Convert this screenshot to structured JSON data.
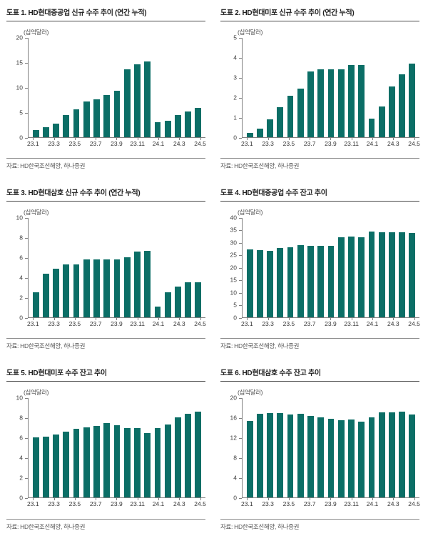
{
  "page": {
    "background": "#ffffff"
  },
  "colors": {
    "bar": "#0B6E66",
    "title_text": "#1f1f1f",
    "title_rule": "#4a4a4a",
    "axis": "#7f7f7f",
    "tick_label": "#3c3c3c",
    "source_text": "#595959",
    "source_rule": "#8c8c8c"
  },
  "chart_data": [
    {
      "type": "bar",
      "title": "도표 1. HD현대중공업 신규 수주 추이 (연간 누적)",
      "unit_label": "(십억달러)",
      "source": "자료: HD한국조선해양, 하나증권",
      "categories": [
        "23.1",
        "23.2",
        "23.3",
        "23.4",
        "23.5",
        "23.6",
        "23.7",
        "23.8",
        "23.9",
        "23.10",
        "23.11",
        "23.12",
        "24.1",
        "24.2",
        "24.3",
        "24.4",
        "24.5"
      ],
      "values": [
        1.5,
        2.0,
        2.7,
        4.5,
        5.6,
        7.2,
        7.7,
        8.5,
        9.3,
        13.6,
        14.7,
        15.3,
        3.0,
        3.3,
        4.4,
        5.2,
        5.9
      ],
      "ylim": [
        0,
        20
      ],
      "y_ticks": [
        0,
        5,
        10,
        15,
        20
      ],
      "x_tick_labels": [
        "23.1",
        "23.3",
        "23.5",
        "23.7",
        "23.9",
        "23.11",
        "24.1",
        "24.3",
        "24.5"
      ],
      "x_label_indices": [
        0,
        2,
        4,
        6,
        8,
        10,
        12,
        14,
        16
      ],
      "grid": "off",
      "legend": "none"
    },
    {
      "type": "bar",
      "title": "도표 2. HD현대미포 신규 수주 추이 (연간 누적)",
      "unit_label": "(십억달러)",
      "source": "자료: HD한국조선해양, 하나증권",
      "categories": [
        "23.1",
        "23.2",
        "23.3",
        "23.4",
        "23.5",
        "23.6",
        "23.7",
        "23.8",
        "23.9",
        "23.10",
        "23.11",
        "23.12",
        "24.1",
        "24.2",
        "24.3",
        "24.4",
        "24.5"
      ],
      "values": [
        0.2,
        0.45,
        0.9,
        1.5,
        2.1,
        2.45,
        3.3,
        3.4,
        3.4,
        3.4,
        3.62,
        3.65,
        0.95,
        1.55,
        2.55,
        3.15,
        3.7
      ],
      "ylim": [
        0,
        5
      ],
      "y_ticks": [
        0,
        1,
        2,
        3,
        4,
        5
      ],
      "x_tick_labels": [
        "23.1",
        "23.3",
        "23.5",
        "23.7",
        "23.9",
        "23.11",
        "24.1",
        "24.3",
        "24.5"
      ],
      "x_label_indices": [
        0,
        2,
        4,
        6,
        8,
        10,
        12,
        14,
        16
      ],
      "grid": "off",
      "legend": "none"
    },
    {
      "type": "bar",
      "title": "도표 3. HD현대삼호 신규 수주 추이 (연간 누적)",
      "unit_label": "(십억달러)",
      "source": "자료: HD한국조선해양, 하나증권",
      "categories": [
        "23.1",
        "23.2",
        "23.3",
        "23.4",
        "23.5",
        "23.6",
        "23.7",
        "23.8",
        "23.9",
        "23.10",
        "23.11",
        "23.12",
        "24.1",
        "24.2",
        "24.3",
        "24.4",
        "24.5"
      ],
      "values": [
        2.5,
        4.4,
        4.9,
        5.3,
        5.3,
        5.85,
        5.85,
        5.85,
        5.85,
        6.05,
        6.65,
        6.7,
        1.1,
        2.5,
        3.1,
        3.55,
        3.55
      ],
      "ylim": [
        0,
        10
      ],
      "y_ticks": [
        0,
        2,
        4,
        6,
        8,
        10
      ],
      "x_tick_labels": [
        "23.1",
        "23.3",
        "23.5",
        "23.7",
        "23.9",
        "23.11",
        "24.1",
        "24.3",
        "24.5"
      ],
      "x_label_indices": [
        0,
        2,
        4,
        6,
        8,
        10,
        12,
        14,
        16
      ],
      "grid": "off",
      "legend": "none"
    },
    {
      "type": "bar",
      "title": "도표 4. HD현대중공업 수주 잔고 추이",
      "unit_label": "(십억달러)",
      "source": "자료: HD한국조선해양, 하나증권",
      "categories": [
        "23.1",
        "23.2",
        "23.3",
        "23.4",
        "23.5",
        "23.6",
        "23.7",
        "23.8",
        "23.9",
        "23.10",
        "23.11",
        "23.12",
        "24.1",
        "24.2",
        "24.3",
        "24.4",
        "24.5"
      ],
      "values": [
        27.2,
        27.0,
        26.8,
        28.0,
        28.3,
        29.0,
        28.8,
        28.9,
        28.8,
        32.3,
        32.5,
        32.3,
        34.5,
        34.2,
        34.3,
        34.2,
        33.9
      ],
      "ylim": [
        0,
        40
      ],
      "y_ticks": [
        0,
        5,
        10,
        15,
        20,
        25,
        30,
        35,
        40
      ],
      "x_tick_labels": [
        "23.1",
        "23.3",
        "23.5",
        "23.7",
        "23.9",
        "23.11",
        "24.1",
        "24.3",
        "24.5"
      ],
      "x_label_indices": [
        0,
        2,
        4,
        6,
        8,
        10,
        12,
        14,
        16
      ],
      "grid": "off",
      "legend": "none"
    },
    {
      "type": "bar",
      "title": "도표 5. HD현대미포 수주 잔고 추이",
      "unit_label": "(십억달러)",
      "source": "자료: HD한국조선해양, 하나증권",
      "categories": [
        "23.1",
        "23.2",
        "23.3",
        "23.4",
        "23.5",
        "23.6",
        "23.7",
        "23.8",
        "23.9",
        "23.10",
        "23.11",
        "23.12",
        "24.1",
        "24.2",
        "24.3",
        "24.4",
        "24.5"
      ],
      "values": [
        6.05,
        6.15,
        6.3,
        6.6,
        6.9,
        7.05,
        7.2,
        7.5,
        7.25,
        7.0,
        6.95,
        6.45,
        7.0,
        7.35,
        8.05,
        8.4,
        8.65
      ],
      "ylim": [
        0,
        10
      ],
      "y_ticks": [
        0,
        2,
        4,
        6,
        8,
        10
      ],
      "x_tick_labels": [
        "23.1",
        "23.3",
        "23.5",
        "23.7",
        "23.9",
        "23.11",
        "24.1",
        "24.3",
        "24.5"
      ],
      "x_label_indices": [
        0,
        2,
        4,
        6,
        8,
        10,
        12,
        14,
        16
      ],
      "grid": "off",
      "legend": "none"
    },
    {
      "type": "bar",
      "title": "도표 6. HD현대삼호 수주 잔고 추이",
      "unit_label": "(십억달러)",
      "source": "자료: HD한국조선해양, 하나증권",
      "categories": [
        "23.1",
        "23.2",
        "23.3",
        "23.4",
        "23.5",
        "23.6",
        "23.7",
        "23.8",
        "23.9",
        "23.10",
        "23.11",
        "23.12",
        "24.1",
        "24.2",
        "24.3",
        "24.4",
        "24.5"
      ],
      "values": [
        15.4,
        16.9,
        17.0,
        17.0,
        16.7,
        16.9,
        16.4,
        16.1,
        15.8,
        15.6,
        15.7,
        15.3,
        16.1,
        17.1,
        17.1,
        17.2,
        16.7
      ],
      "ylim": [
        0,
        20
      ],
      "y_ticks": [
        0,
        4,
        8,
        12,
        16,
        20
      ],
      "x_tick_labels": [
        "23.1",
        "23.3",
        "23.5",
        "23.7",
        "23.9",
        "23.11",
        "24.1",
        "24.3",
        "24.5"
      ],
      "x_label_indices": [
        0,
        2,
        4,
        6,
        8,
        10,
        12,
        14,
        16
      ],
      "grid": "off",
      "legend": "none"
    }
  ]
}
